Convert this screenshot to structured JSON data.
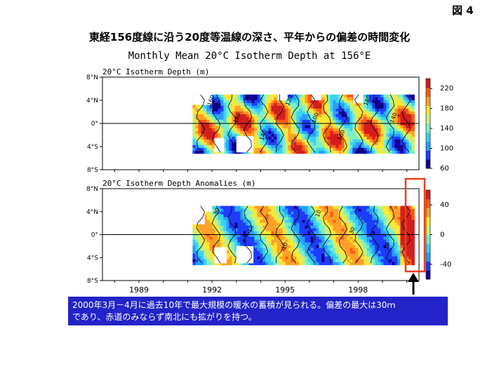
{
  "figure_label": "図 4",
  "page_title": "東経156度線に沿う20度等温線の深さ、平年からの偏差の時間変化",
  "note_lines": [
    "2000年3月－4月に過去10年で最大規模の暖水の蓄積が見られる。偏差の最大は30ｍ",
    "であり、赤道のみならず南北にも拡がりを持つ。"
  ],
  "colors": {
    "highlight_box": "#e8401c",
    "arrow": "#000000",
    "note_bg": "#2323c8",
    "scale": [
      "#10008c",
      "#1e3cff",
      "#28a0ff",
      "#3cd2f0",
      "#78f0c8",
      "#c8f078",
      "#ffe632",
      "#ffa028",
      "#ff5a14",
      "#d21e1e"
    ]
  },
  "chart_data": [
    {
      "type": "heatmap",
      "title": "Monthly Mean 20°C Isotherm Depth at 156°E",
      "subtitle": "20°C Isotherm Depth (m)",
      "xlabel": "",
      "ylabel": "",
      "x_ticks": [
        "1989",
        "1992",
        "1995",
        "1998"
      ],
      "x_range": [
        1987.5,
        2000.5
      ],
      "y_ticks": [
        "8°N",
        "4°N",
        "0°",
        "4°S",
        "8°S"
      ],
      "y_range": [
        -8,
        8
      ],
      "colorbar_ticks": [
        220,
        180,
        140,
        100,
        60
      ],
      "colorbar_range": [
        60,
        240
      ],
      "contour_labels": [
        "160",
        "180",
        "140",
        "120",
        "100",
        "160",
        "180",
        "140"
      ]
    },
    {
      "type": "heatmap",
      "title": "",
      "subtitle": "20°C Isotherm Depth Anomalies (m)",
      "xlabel": "",
      "ylabel": "",
      "x_ticks": [
        "1989",
        "1992",
        "1995",
        "1998"
      ],
      "x_range": [
        1987.5,
        2000.5
      ],
      "y_ticks": [
        "8°N",
        "4°N",
        "0°",
        "4°S",
        "8°S"
      ],
      "y_range": [
        -8,
        8
      ],
      "colorbar_ticks": [
        40,
        0,
        -40
      ],
      "colorbar_range": [
        -60,
        60
      ],
      "contour_labels": [
        "-30",
        "-10",
        "-10",
        "10",
        "30",
        "-10"
      ]
    }
  ]
}
